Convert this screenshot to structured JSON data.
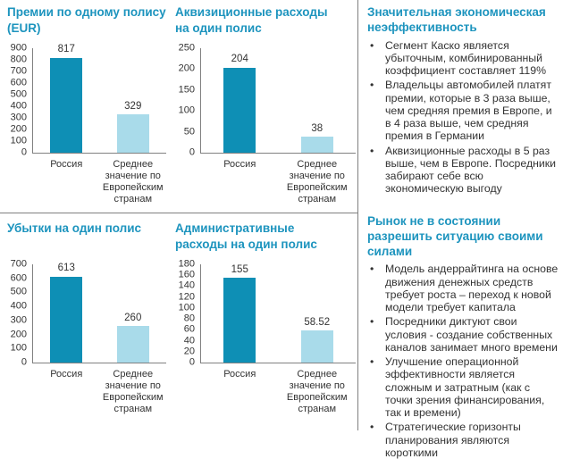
{
  "page": {
    "bullet_char": "•"
  },
  "colors": {
    "accent_teal": "#1D94BE",
    "bar_primary": "#0E8FB5",
    "bar_secondary": "#A9DBEA",
    "divider_gray": "#808080"
  },
  "chart_data": [
    {
      "type": "bar",
      "title": "Премии по одному полису (EUR)",
      "categories": [
        "Россия",
        "Среднее значение по Европейским странам"
      ],
      "values": [
        817,
        329
      ],
      "value_labels": [
        "817",
        "329"
      ],
      "ylim": [
        0,
        900
      ],
      "yticks": [
        0,
        100,
        200,
        300,
        400,
        500,
        600,
        700,
        800,
        900
      ],
      "bar_colors": [
        "#0E8FB5",
        "#A9DBEA"
      ],
      "grid": false,
      "legend": false
    },
    {
      "type": "bar",
      "title": "Аквизиционные расходы на один полис",
      "categories": [
        "Россия",
        "Среднее значение по Европейским странам"
      ],
      "values": [
        204,
        38
      ],
      "value_labels": [
        "204",
        "38"
      ],
      "ylim": [
        0,
        250
      ],
      "yticks": [
        0,
        50,
        100,
        150,
        200,
        250
      ],
      "bar_colors": [
        "#0E8FB5",
        "#A9DBEA"
      ],
      "grid": false,
      "legend": false
    },
    {
      "type": "bar",
      "title": "Убытки на один полис",
      "categories": [
        "Россия",
        "Среднее значение по Европейским странам"
      ],
      "values": [
        613,
        260
      ],
      "value_labels": [
        "613",
        "260"
      ],
      "ylim": [
        0,
        700
      ],
      "yticks": [
        0,
        100,
        200,
        300,
        400,
        500,
        600,
        700
      ],
      "bar_colors": [
        "#0E8FB5",
        "#A9DBEA"
      ],
      "grid": false,
      "legend": false
    },
    {
      "type": "bar",
      "title": "Административные расходы на один полис",
      "categories": [
        "Россия",
        "Среднее значение по Европейским странам"
      ],
      "values": [
        155,
        58.52
      ],
      "value_labels": [
        "155",
        "58.52"
      ],
      "ylim": [
        0,
        180
      ],
      "yticks": [
        0,
        20,
        40,
        60,
        80,
        100,
        120,
        140,
        160,
        180
      ],
      "bar_colors": [
        "#0E8FB5",
        "#A9DBEA"
      ],
      "grid": false,
      "legend": false
    }
  ],
  "right_panel": {
    "sections": [
      {
        "title": "Значительная экономическая неэффективность",
        "bullets": [
          "Сегмент Каско является убыточным, комбинированный коэффициент составляет 119%",
          "Владельцы автомобилей платят премии, которые в 3 раза выше, чем средняя премия в Европе, и в 4 раза выше, чем средняя премия в Германии",
          "Аквизиционные расходы в 5 раз выше, чем в Европе. Посредники забирают себе всю экономическую выгоду"
        ]
      },
      {
        "title": "Рынок не в состоянии разрешить ситуацию своими силами",
        "bullets": [
          "Модель андеррайтинга на основе движения денежных средств требует роста – переход к новой модели требует капитала",
          "Посредники диктуют свои условия - создание собственных каналов занимает много времени",
          "Улучшение операционной эффективности является сложным и затратным (как с точки зрения финансирования, так и времени)",
          "Стратегические горизонты планирования являются короткими"
        ]
      }
    ]
  }
}
